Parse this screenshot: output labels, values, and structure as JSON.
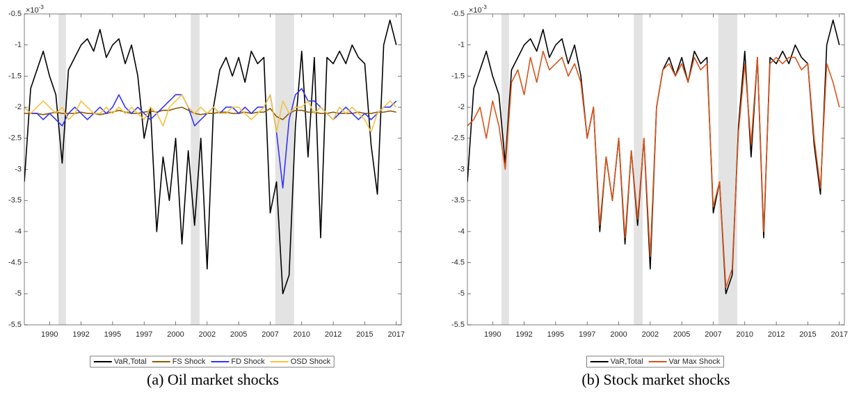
{
  "chart_data": [
    {
      "type": "line",
      "caption": "(a) Oil market shocks",
      "y_exponent": {
        "base": "×10",
        "power": "-3"
      },
      "xlim": [
        1988,
        2017.9
      ],
      "ylim": [
        -5.5,
        -0.5
      ],
      "xticks": [
        1990,
        {
          "value": 1992.5,
          "label": "1992"
        },
        1995,
        {
          "value": 1997.5,
          "label": "1997"
        },
        2000,
        {
          "value": 2002.5,
          "label": "2002"
        },
        2005,
        {
          "value": 2007.5,
          "label": "2007"
        },
        2010,
        {
          "value": 2012.5,
          "label": "2012"
        },
        2015,
        {
          "value": 2017.5,
          "label": "2017"
        }
      ],
      "yticks": [
        -0.5,
        -1,
        -1.5,
        -2,
        -2.5,
        -3,
        -3.5,
        -4,
        -4.5,
        -5,
        -5.5
      ],
      "shaded_regions": [
        [
          1990.7,
          1991.3
        ],
        [
          2001.2,
          2001.9
        ],
        [
          2007.9,
          2009.4
        ]
      ],
      "shade_color": "#e3e3e3",
      "legend": "bottom-outside",
      "x": [
        1988,
        1988.5,
        1989,
        1989.5,
        1990,
        1990.5,
        1991,
        1991.5,
        1992,
        1992.5,
        1993,
        1993.5,
        1994,
        1994.5,
        1995,
        1995.5,
        1996,
        1996.5,
        1997,
        1997.5,
        1998,
        1998.5,
        1999,
        1999.5,
        2000,
        2000.5,
        2001,
        2001.5,
        2002,
        2002.5,
        2003,
        2003.5,
        2004,
        2004.5,
        2005,
        2005.5,
        2006,
        2006.5,
        2007,
        2007.5,
        2008,
        2008.5,
        2009,
        2009.5,
        2010,
        2010.5,
        2011,
        2011.5,
        2012,
        2012.5,
        2013,
        2013.5,
        2014,
        2014.5,
        2015,
        2015.5,
        2016,
        2016.5,
        2017,
        2017.5
      ],
      "series": [
        {
          "name": "VaR,Total",
          "color": "#000000",
          "values": [
            -3.2,
            -1.7,
            -1.4,
            -1.1,
            -1.5,
            -1.8,
            -2.9,
            -1.4,
            -1.2,
            -1.0,
            -0.9,
            -1.1,
            -0.75,
            -1.2,
            -1.0,
            -0.9,
            -1.3,
            -1.0,
            -1.5,
            -2.5,
            -2.0,
            -4.0,
            -2.8,
            -3.5,
            -2.5,
            -4.2,
            -2.7,
            -3.9,
            -2.5,
            -4.6,
            -2.0,
            -1.4,
            -1.2,
            -1.5,
            -1.2,
            -1.6,
            -1.1,
            -1.3,
            -1.2,
            -3.7,
            -3.2,
            -5.0,
            -4.7,
            -2.3,
            -1.1,
            -2.8,
            -1.2,
            -4.1,
            -1.2,
            -1.3,
            -1.1,
            -1.3,
            -1.0,
            -1.2,
            -1.3,
            -2.6,
            -3.4,
            -1.0,
            -0.6,
            -1.0
          ]
        },
        {
          "name": "FS Shock",
          "color": "#8b5a00",
          "values": [
            -2.1,
            -2.1,
            -2.1,
            -2.12,
            -2.1,
            -2.08,
            -2.1,
            -2.1,
            -2.1,
            -2.08,
            -2.1,
            -2.1,
            -2.12,
            -2.1,
            -2.08,
            -2.05,
            -2.08,
            -2.1,
            -2.1,
            -2.08,
            -2.06,
            -2.08,
            -2.05,
            -2.05,
            -2.02,
            -2.0,
            -2.05,
            -2.1,
            -2.12,
            -2.1,
            -2.1,
            -2.08,
            -2.08,
            -2.1,
            -2.1,
            -2.08,
            -2.1,
            -2.08,
            -2.08,
            -2.02,
            -2.15,
            -2.2,
            -2.1,
            -2.05,
            -2.05,
            -2.08,
            -2.08,
            -2.1,
            -2.1,
            -2.08,
            -2.1,
            -2.1,
            -2.1,
            -2.08,
            -2.1,
            -2.1,
            -2.08,
            -2.08,
            -2.06,
            -2.08
          ]
        },
        {
          "name": "FD Shock",
          "color": "#3333ff",
          "values": [
            -2.0,
            -2.1,
            -2.1,
            -2.2,
            -2.1,
            -2.2,
            -2.3,
            -2.1,
            -2.0,
            -2.1,
            -2.2,
            -2.1,
            -2.0,
            -2.1,
            -2.0,
            -1.8,
            -2.0,
            -2.1,
            -2.0,
            -2.1,
            -2.2,
            -2.1,
            -2.0,
            -1.9,
            -1.8,
            -1.8,
            -2.0,
            -2.3,
            -2.2,
            -2.1,
            -2.0,
            -2.1,
            -2.0,
            -2.0,
            -2.1,
            -2.0,
            -2.1,
            -2.0,
            -2.0,
            -1.8,
            -2.4,
            -3.3,
            -2.2,
            -1.8,
            -1.7,
            -1.9,
            -1.9,
            -2.0,
            -2.1,
            -2.2,
            -2.1,
            -2.0,
            -2.1,
            -2.2,
            -2.1,
            -2.2,
            -2.1,
            -2.0,
            -2.0,
            -1.9
          ]
        },
        {
          "name": "OSD Shock",
          "color": "#f5c242",
          "values": [
            -2.0,
            -2.1,
            -2.0,
            -1.9,
            -2.0,
            -2.1,
            -2.0,
            -2.2,
            -2.1,
            -1.9,
            -2.0,
            -2.1,
            -2.1,
            -2.0,
            -2.1,
            -2.0,
            -2.1,
            -2.0,
            -2.1,
            -2.2,
            -2.0,
            -2.1,
            -2.3,
            -2.0,
            -1.9,
            -1.8,
            -2.0,
            -2.1,
            -2.0,
            -2.1,
            -2.0,
            -2.1,
            -2.1,
            -2.0,
            -2.0,
            -2.1,
            -2.2,
            -2.1,
            -2.0,
            -1.8,
            -2.4,
            -1.9,
            -2.1,
            -2.0,
            -2.0,
            -1.9,
            -2.1,
            -2.0,
            -2.1,
            -2.2,
            -2.0,
            -2.1,
            -2.0,
            -2.1,
            -2.2,
            -2.4,
            -2.1,
            -2.0,
            -1.9,
            -2.0
          ]
        }
      ]
    },
    {
      "type": "line",
      "caption": "(b) Stock market shocks",
      "y_exponent": {
        "base": "×10",
        "power": "-3"
      },
      "xlim": [
        1988,
        2017.9
      ],
      "ylim": [
        -5.5,
        -0.5
      ],
      "xticks": [
        1990,
        {
          "value": 1992.5,
          "label": "1992"
        },
        1995,
        {
          "value": 1997.5,
          "label": "1997"
        },
        2000,
        {
          "value": 2002.5,
          "label": "2002"
        },
        2005,
        {
          "value": 2007.5,
          "label": "2007"
        },
        2010,
        {
          "value": 2012.5,
          "label": "2012"
        },
        2015,
        {
          "value": 2017.5,
          "label": "2017"
        }
      ],
      "yticks": [
        -0.5,
        -1,
        -1.5,
        -2,
        -2.5,
        -3,
        -3.5,
        -4,
        -4.5,
        -5,
        -5.5
      ],
      "shaded_regions": [
        [
          1990.7,
          1991.3
        ],
        [
          2001.2,
          2001.9
        ],
        [
          2007.9,
          2009.4
        ]
      ],
      "shade_color": "#e3e3e3",
      "legend": "bottom-outside",
      "x": [
        1988,
        1988.5,
        1989,
        1989.5,
        1990,
        1990.5,
        1991,
        1991.5,
        1992,
        1992.5,
        1993,
        1993.5,
        1994,
        1994.5,
        1995,
        1995.5,
        1996,
        1996.5,
        1997,
        1997.5,
        1998,
        1998.5,
        1999,
        1999.5,
        2000,
        2000.5,
        2001,
        2001.5,
        2002,
        2002.5,
        2003,
        2003.5,
        2004,
        2004.5,
        2005,
        2005.5,
        2006,
        2006.5,
        2007,
        2007.5,
        2008,
        2008.5,
        2009,
        2009.5,
        2010,
        2010.5,
        2011,
        2011.5,
        2012,
        2012.5,
        2013,
        2013.5,
        2014,
        2014.5,
        2015,
        2015.5,
        2016,
        2016.5,
        2017,
        2017.5
      ],
      "series": [
        {
          "name": "VaR,Total",
          "color": "#000000",
          "values": [
            -3.2,
            -1.7,
            -1.4,
            -1.1,
            -1.5,
            -1.8,
            -2.9,
            -1.4,
            -1.2,
            -1.0,
            -0.9,
            -1.1,
            -0.75,
            -1.2,
            -1.0,
            -0.9,
            -1.3,
            -1.0,
            -1.5,
            -2.5,
            -2.0,
            -4.0,
            -2.8,
            -3.5,
            -2.5,
            -4.2,
            -2.7,
            -3.9,
            -2.5,
            -4.6,
            -2.0,
            -1.4,
            -1.2,
            -1.5,
            -1.2,
            -1.6,
            -1.1,
            -1.3,
            -1.2,
            -3.7,
            -3.2,
            -5.0,
            -4.7,
            -2.3,
            -1.1,
            -2.8,
            -1.2,
            -4.1,
            -1.2,
            -1.3,
            -1.1,
            -1.3,
            -1.0,
            -1.2,
            -1.3,
            -2.6,
            -3.4,
            -1.0,
            -0.6,
            -1.0
          ]
        },
        {
          "name": "Var Max Shock",
          "color": "#d95319",
          "values": [
            -2.3,
            -2.2,
            -2.0,
            -2.5,
            -1.9,
            -2.3,
            -3.0,
            -1.6,
            -1.4,
            -1.8,
            -1.2,
            -1.6,
            -1.1,
            -1.4,
            -1.3,
            -1.2,
            -1.5,
            -1.3,
            -1.6,
            -2.5,
            -2.0,
            -3.9,
            -2.8,
            -3.5,
            -2.5,
            -4.1,
            -2.7,
            -3.8,
            -2.5,
            -4.4,
            -2.0,
            -1.4,
            -1.3,
            -1.5,
            -1.3,
            -1.6,
            -1.2,
            -1.4,
            -1.3,
            -3.6,
            -3.2,
            -4.9,
            -4.6,
            -2.4,
            -1.3,
            -2.6,
            -1.2,
            -4.0,
            -1.3,
            -1.2,
            -1.3,
            -1.2,
            -1.2,
            -1.4,
            -1.3,
            -2.5,
            -3.3,
            -1.3,
            -1.6,
            -2.0
          ]
        }
      ]
    }
  ]
}
